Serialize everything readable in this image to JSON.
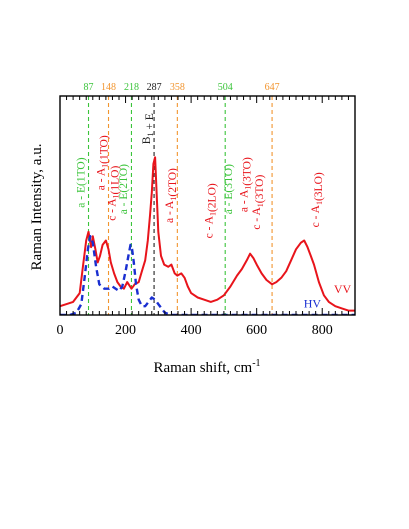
{
  "chart_data": {
    "type": "line",
    "xlabel": "Raman shift, cm",
    "xlabel_sup": "-1",
    "ylabel": "Raman Intensity, a.u.",
    "xlim": [
      0,
      900
    ],
    "ylim": [
      0,
      1
    ],
    "x_ticks": [
      0,
      200,
      400,
      600,
      800
    ],
    "x_tick_labels": [
      "0",
      "200",
      "400",
      "600",
      "800"
    ],
    "y_ticks_shown": false,
    "grid": false,
    "colors": {
      "VV": "#e8141b",
      "HV": "#1a2fd1",
      "E_mode": "#3bc43b",
      "A1_mode": "#f2952f",
      "B1E_mode": "#222222",
      "axis": "#000000"
    },
    "series": [
      {
        "name": "VV",
        "style": "solid",
        "x": [
          0,
          20,
          40,
          60,
          70,
          80,
          87,
          95,
          100,
          108,
          115,
          122,
          130,
          140,
          148,
          155,
          165,
          175,
          185,
          195,
          205,
          218,
          228,
          240,
          250,
          260,
          268,
          275,
          280,
          285,
          290,
          295,
          300,
          308,
          318,
          330,
          340,
          350,
          358,
          370,
          380,
          390,
          400,
          420,
          440,
          460,
          480,
          500,
          520,
          540,
          555,
          570,
          580,
          590,
          600,
          615,
          630,
          647,
          660,
          675,
          690,
          705,
          720,
          735,
          745,
          755,
          765,
          775,
          790,
          805,
          820,
          840,
          860,
          880,
          900
        ],
        "y": [
          0.04,
          0.05,
          0.06,
          0.1,
          0.22,
          0.34,
          0.38,
          0.31,
          0.36,
          0.3,
          0.24,
          0.27,
          0.32,
          0.34,
          0.3,
          0.24,
          0.19,
          0.15,
          0.13,
          0.12,
          0.15,
          0.12,
          0.14,
          0.15,
          0.2,
          0.25,
          0.34,
          0.46,
          0.56,
          0.69,
          0.72,
          0.55,
          0.38,
          0.27,
          0.23,
          0.22,
          0.23,
          0.19,
          0.18,
          0.19,
          0.17,
          0.13,
          0.1,
          0.08,
          0.07,
          0.06,
          0.07,
          0.09,
          0.13,
          0.18,
          0.21,
          0.25,
          0.28,
          0.26,
          0.23,
          0.19,
          0.16,
          0.14,
          0.15,
          0.17,
          0.2,
          0.25,
          0.3,
          0.33,
          0.34,
          0.31,
          0.27,
          0.23,
          0.15,
          0.09,
          0.06,
          0.04,
          0.03,
          0.02,
          0.02
        ]
      },
      {
        "name": "HV",
        "style": "dashed",
        "x": [
          0,
          30,
          50,
          65,
          75,
          85,
          92,
          100,
          110,
          120,
          135,
          150,
          160,
          170,
          180,
          190,
          200,
          210,
          215,
          220,
          225,
          232,
          240,
          250,
          260,
          270,
          280,
          290,
          300,
          310,
          320,
          340,
          360,
          380,
          400,
          450,
          500,
          550,
          600,
          650,
          700,
          750,
          800,
          850,
          900
        ],
        "y": [
          0.0,
          0.0,
          0.01,
          0.05,
          0.17,
          0.3,
          0.36,
          0.33,
          0.22,
          0.14,
          0.12,
          0.12,
          0.13,
          0.12,
          0.11,
          0.13,
          0.2,
          0.28,
          0.32,
          0.3,
          0.24,
          0.14,
          0.07,
          0.04,
          0.04,
          0.06,
          0.08,
          0.07,
          0.05,
          0.03,
          0.01,
          0.0,
          0.0,
          0.0,
          0.0,
          0.0,
          0.0,
          0.0,
          0.0,
          0.0,
          0.0,
          0.0,
          0.0,
          0.0,
          0.0
        ]
      }
    ],
    "series_labels": [
      "VV",
      "HV"
    ],
    "mode_lines": [
      {
        "value": 87,
        "label": "87",
        "kind": "E"
      },
      {
        "value": 148,
        "label": "148",
        "kind": "A1"
      },
      {
        "value": 218,
        "label": "218",
        "kind": "E"
      },
      {
        "value": 287,
        "label": "287",
        "kind": "B1E"
      },
      {
        "value": 358,
        "label": "358",
        "kind": "A1"
      },
      {
        "value": 504,
        "label": "504",
        "kind": "E"
      },
      {
        "value": 647,
        "label": "647",
        "kind": "A1"
      }
    ],
    "annotations": [
      {
        "id": "a-e1to",
        "x": 75,
        "y": 0.49,
        "color": "E",
        "parts": [
          {
            "t": "a - E(1TO)"
          }
        ]
      },
      {
        "id": "a-a1-1to",
        "x": 135,
        "y": 0.57,
        "color": "VV",
        "parts": [
          {
            "t": "a - A"
          },
          {
            "t": "1",
            "sub": true
          },
          {
            "t": "(1TO)"
          }
        ]
      },
      {
        "id": "c-a1-1lo",
        "x": 170,
        "y": 0.43,
        "color": "VV",
        "parts": [
          {
            "t": "c - A"
          },
          {
            "t": "1",
            "sub": true
          },
          {
            "t": "(1LO)"
          }
        ]
      },
      {
        "id": "a-e2to",
        "x": 205,
        "y": 0.46,
        "color": "E",
        "parts": [
          {
            "t": "a - E(2TO)"
          }
        ]
      },
      {
        "id": "b1-e",
        "x": 275,
        "y": 0.78,
        "color": "B1E",
        "parts": [
          {
            "t": "B"
          },
          {
            "t": "1",
            "sub": true
          },
          {
            "t": " + E"
          }
        ]
      },
      {
        "id": "a-a1-2to",
        "x": 345,
        "y": 0.42,
        "color": "VV",
        "parts": [
          {
            "t": "a - A"
          },
          {
            "t": "1",
            "sub": true
          },
          {
            "t": "(2TO)"
          }
        ]
      },
      {
        "id": "c-a1-2lo",
        "x": 465,
        "y": 0.35,
        "color": "VV",
        "parts": [
          {
            "t": "c - A"
          },
          {
            "t": "1",
            "sub": true
          },
          {
            "t": "(2LO)"
          }
        ]
      },
      {
        "id": "a-e3to",
        "x": 525,
        "y": 0.46,
        "color": "E",
        "parts": [
          {
            "t": "a - E(3TO)"
          }
        ]
      },
      {
        "id": "a-a1-3to",
        "x": 572,
        "y": 0.47,
        "color": "VV",
        "parts": [
          {
            "t": "a - A"
          },
          {
            "t": "1",
            "sub": true
          },
          {
            "t": "(3TO)"
          }
        ]
      },
      {
        "id": "c-a1-3to",
        "x": 610,
        "y": 0.39,
        "color": "VV",
        "parts": [
          {
            "t": "c - A"
          },
          {
            "t": "1",
            "sub": true
          },
          {
            "t": "(3TO)"
          }
        ]
      },
      {
        "id": "c-a1-3lo",
        "x": 790,
        "y": 0.4,
        "color": "VV",
        "parts": [
          {
            "t": "c - A"
          },
          {
            "t": "1",
            "sub": true
          },
          {
            "t": "(3LO)"
          }
        ]
      }
    ]
  }
}
